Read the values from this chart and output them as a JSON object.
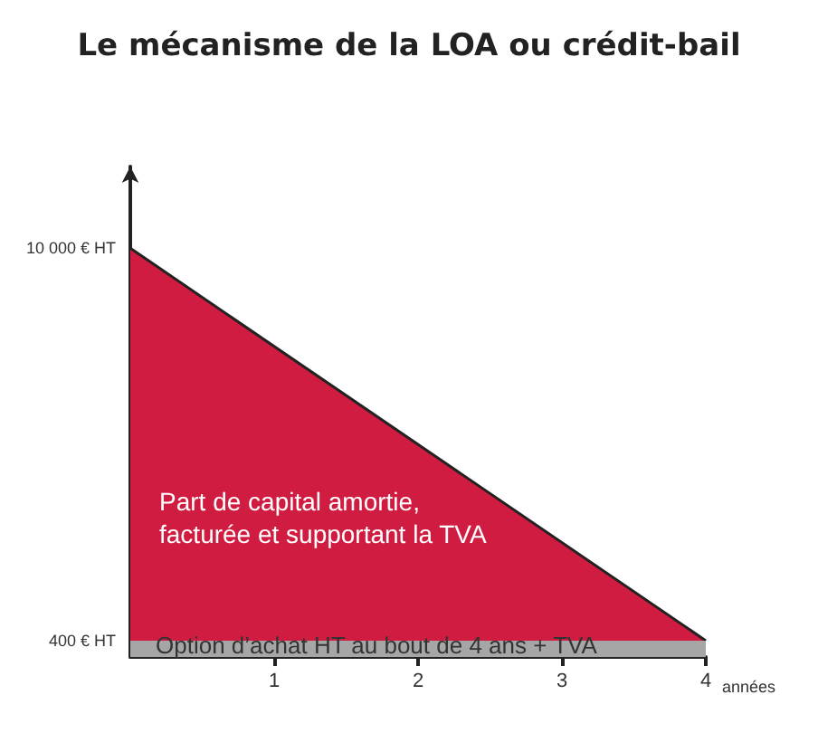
{
  "chart_data": {
    "type": "area",
    "title": "Le mécanisme de la LOA ou crédit-bail",
    "xlabel": "années",
    "stacked": true,
    "x": [
      0,
      4
    ],
    "series": [
      {
        "color": "#a6a6a6",
        "values": [
          400,
          400
        ]
      },
      {
        "color": "#d11c42",
        "values": [
          9600,
          0
        ]
      }
    ],
    "xlim": [
      0,
      4
    ],
    "xticks": [
      1,
      2,
      3,
      4
    ],
    "ylim": [
      0,
      12000
    ],
    "yticks": [
      {
        "value": 400,
        "label": "400 € HT"
      },
      {
        "value": 10000,
        "label": "10 000 € HT"
      }
    ],
    "grid": false,
    "marker": "none",
    "annotations": [
      "Part de capital amortie,\nfacturée et supportant la TVA",
      "Option d’achat HT au bout de 4 ans + TVA"
    ]
  }
}
